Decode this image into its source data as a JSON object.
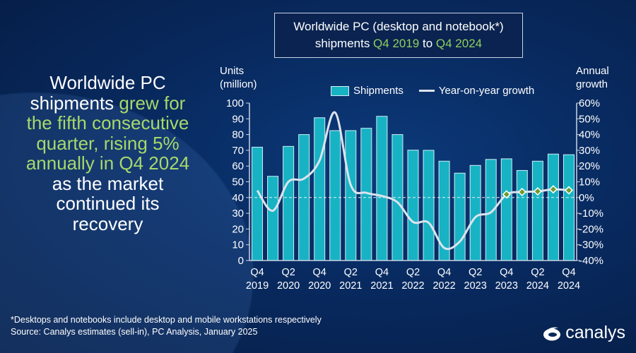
{
  "headline": {
    "lines": [
      [
        {
          "t": "Worldwide PC",
          "g": false
        }
      ],
      [
        {
          "t": "shipments ",
          "g": false
        },
        {
          "t": "grew for",
          "g": true
        }
      ],
      [
        {
          "t": "the fifth consecutive",
          "g": true
        }
      ],
      [
        {
          "t": "quarter, rising 5%",
          "g": true
        }
      ],
      [
        {
          "t": "annually in Q4 2024",
          "g": true
        }
      ],
      [
        {
          "t": "as the market",
          "g": false
        }
      ],
      [
        {
          "t": "continued its",
          "g": false
        }
      ],
      [
        {
          "t": "recovery",
          "g": false
        }
      ]
    ]
  },
  "title_box": {
    "line1": "Worldwide PC (desktop and notebook*)",
    "line2_a": "shipments ",
    "line2_b": "Q4 2019",
    "line2_c": " to ",
    "line2_d": "Q4 2024"
  },
  "footnote": "*Desktops and notebooks include desktop and mobile workstations respectively",
  "source": "Source: Canalys estimates (sell-in), PC Analysis, January 2025",
  "logo": {
    "text": "canalys"
  },
  "colors": {
    "bar": "#17b3c4",
    "line": "#dde3ee",
    "accent_green": "#a6d96a",
    "marker": "#6f9a2e",
    "background": "#082a60"
  },
  "chart_data": {
    "type": "bar+line",
    "title": "Worldwide PC (desktop and notebook*) shipments Q4 2019 to Q4 2024",
    "ylabel": "Units (million)",
    "y2label": "Annual growth",
    "ylim": [
      0,
      100
    ],
    "yticks": [
      "0",
      "10",
      "20",
      "30",
      "40",
      "50",
      "60",
      "70",
      "80",
      "90",
      "100"
    ],
    "y2lim": [
      -40,
      60
    ],
    "y2ticks": [
      "-40%",
      "-30%",
      "-20%",
      "-10%",
      "0%",
      "10%",
      "20%",
      "30%",
      "40%",
      "50%",
      "60%"
    ],
    "legend": "top",
    "categories": [
      "Q4 2019",
      "Q1 2020",
      "Q2 2020",
      "Q3 2020",
      "Q4 2020",
      "Q1 2021",
      "Q2 2021",
      "Q3 2021",
      "Q4 2021",
      "Q1 2022",
      "Q2 2022",
      "Q3 2022",
      "Q4 2022",
      "Q1 2023",
      "Q2 2023",
      "Q3 2023",
      "Q4 2023",
      "Q1 2024",
      "Q2 2024",
      "Q3 2024",
      "Q4 2024"
    ],
    "xticks": [
      [
        "Q4",
        "2019"
      ],
      [
        "Q2",
        "2020"
      ],
      [
        "Q4",
        "2020"
      ],
      [
        "Q2",
        "2021"
      ],
      [
        "Q4",
        "2021"
      ],
      [
        "Q2",
        "2022"
      ],
      [
        "Q4",
        "2022"
      ],
      [
        "Q2",
        "2023"
      ],
      [
        "Q4",
        "2023"
      ],
      [
        "Q2",
        "2024"
      ],
      [
        "Q4",
        "2024"
      ]
    ],
    "series": [
      {
        "name": "Shipments",
        "type": "bar",
        "axis": "left",
        "values": [
          72,
          53.5,
          72.5,
          80,
          90.7,
          82.5,
          82.5,
          84,
          91.6,
          80,
          70.1,
          70,
          63.1,
          55.5,
          60.4,
          64.2,
          64.6,
          57.2,
          63.1,
          67.6,
          67.2
        ]
      },
      {
        "name": "Year-on-year growth",
        "type": "line",
        "axis": "right",
        "values": [
          4.5,
          -8.4,
          10,
          12,
          23.5,
          54,
          8,
          3,
          1,
          -3,
          -15.5,
          -16,
          -32,
          -28,
          -12.5,
          -9.4,
          2,
          3.5,
          3.9,
          5.2,
          4.6
        ],
        "markers_from": "Q4 2023"
      }
    ]
  }
}
